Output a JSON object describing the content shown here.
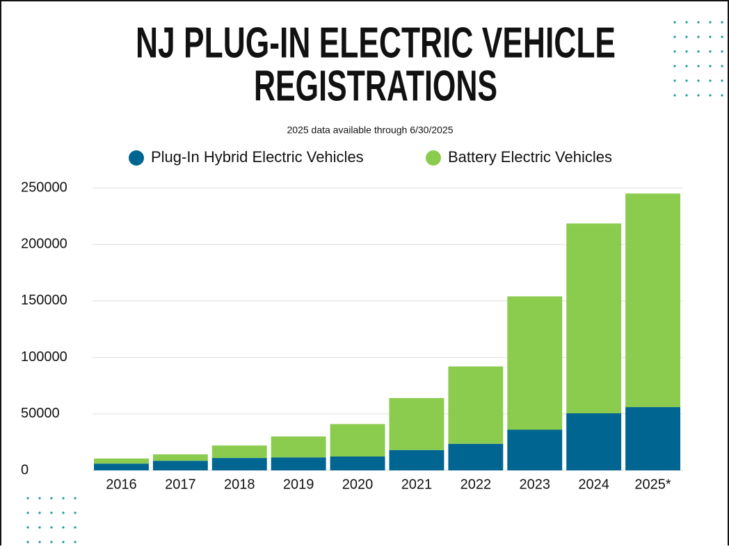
{
  "chart_data": {
    "type": "stacked_bar",
    "title": [
      "NJ PLUG-IN ELECTRIC VEHICLE",
      "REGISTRATIONS"
    ],
    "subtitle": "2025 data available through 6/30/2025",
    "categories": [
      "2016",
      "2017",
      "2018",
      "2019",
      "2020",
      "2021",
      "2022",
      "2023",
      "2024",
      "2025*"
    ],
    "series": [
      {
        "name": "Plug-In Hybrid Electric Vehicles",
        "color": "#006591",
        "values": [
          6000,
          8500,
          11000,
          11500,
          12300,
          18000,
          23500,
          36000,
          50500,
          56000
        ]
      },
      {
        "name": "Battery Electric Vehicles",
        "color": "#8bcc4f",
        "values": [
          4500,
          5700,
          11000,
          18500,
          28700,
          46000,
          68500,
          118000,
          168000,
          189000
        ]
      }
    ],
    "ylim": [
      0,
      250000
    ],
    "yticks": [
      0,
      50000,
      100000,
      150000,
      200000,
      250000
    ],
    "grid": true
  }
}
